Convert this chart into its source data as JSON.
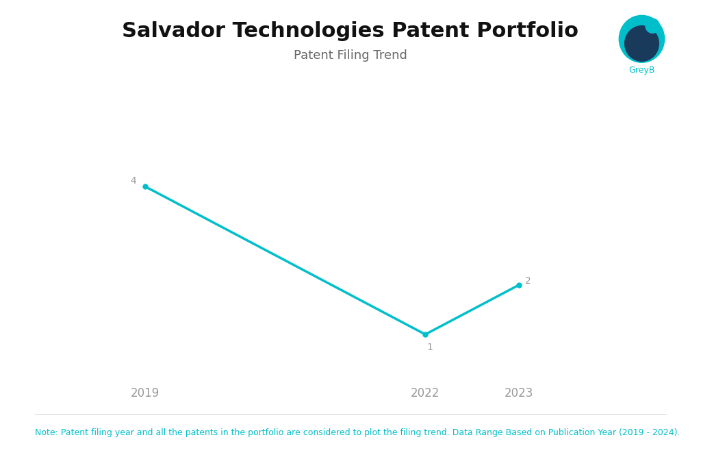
{
  "title": "Salvador Technologies Patent Portfolio",
  "subtitle": "Patent Filing Trend",
  "x_values": [
    2019,
    2022,
    2023
  ],
  "y_values": [
    4,
    1,
    2
  ],
  "line_color": "#00BFCB",
  "marker_color": "#00BFCB",
  "background_color": "#ffffff",
  "note": "Note: Patent filing year and all the patents in the portfolio are considered to plot the filing trend. Data Range Based on Publication Year (2019 - 2024).",
  "xlim": [
    2018.2,
    2024.2
  ],
  "ylim": [
    0.0,
    5.5
  ],
  "title_fontsize": 22,
  "subtitle_fontsize": 13,
  "note_fontsize": 9,
  "tick_fontsize": 12,
  "label_fontsize": 10,
  "line_width": 2.5,
  "marker_size": 5,
  "xticks": [
    2019,
    2022,
    2023
  ],
  "title_color": "#111111",
  "subtitle_color": "#666666",
  "tick_color": "#999999",
  "note_color": "#00BFCB",
  "greyb_text_color": "#00BFCB",
  "logo_circle_color": "#00BFCB",
  "logo_inner_color": "#1a3a5c",
  "logo_dot_color": "#00BFCB"
}
